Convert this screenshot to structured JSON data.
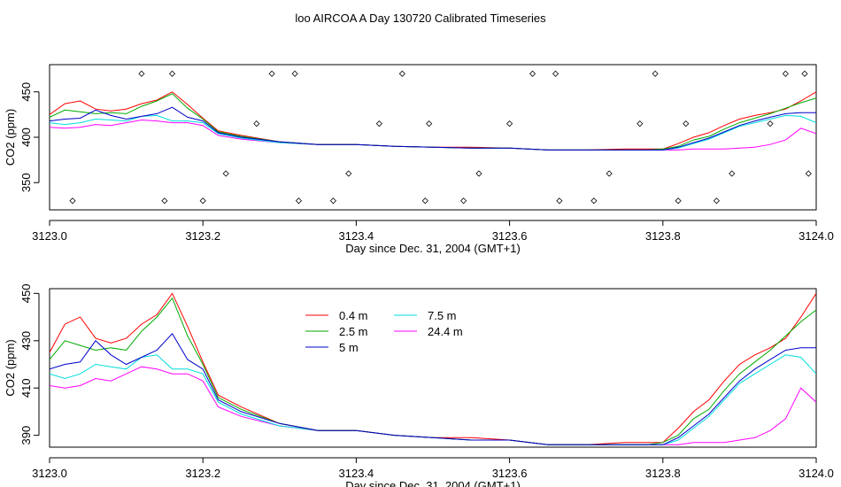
{
  "figure_title": "loo AIRCOA A  Day 130720  Calibrated Timeseries",
  "chart_data": [
    {
      "type": "line",
      "xlabel": "Day since Dec. 31, 2004 (GMT+1)",
      "ylabel": "CO2 (ppm)",
      "xlim": [
        3123.0,
        3124.0
      ],
      "ylim": [
        320,
        480
      ],
      "xticks": [
        "3123.0",
        "3123.2",
        "3123.4",
        "3123.6",
        "3123.8",
        "3124.0"
      ],
      "yticks": [
        "350",
        "400",
        "450"
      ],
      "x": [
        3123.0,
        3123.02,
        3123.04,
        3123.06,
        3123.08,
        3123.1,
        3123.12,
        3123.14,
        3123.16,
        3123.18,
        3123.2,
        3123.22,
        3123.25,
        3123.3,
        3123.35,
        3123.4,
        3123.45,
        3123.5,
        3123.55,
        3123.6,
        3123.65,
        3123.7,
        3123.75,
        3123.78,
        3123.8,
        3123.82,
        3123.84,
        3123.86,
        3123.88,
        3123.9,
        3123.92,
        3123.94,
        3123.96,
        3123.98,
        3124.0
      ],
      "series": [
        {
          "name": "0.4 m",
          "color": "#ff0000",
          "values": [
            425,
            437,
            440,
            431,
            429,
            431,
            437,
            441,
            450,
            436,
            421,
            407,
            402,
            395,
            392,
            392,
            390,
            389,
            389,
            388,
            386,
            386,
            387,
            387,
            387,
            393,
            400,
            405,
            413,
            420,
            424,
            427,
            431,
            440,
            450
          ]
        },
        {
          "name": "2.5 m",
          "color": "#00aa00",
          "values": [
            422,
            430,
            428,
            426,
            427,
            426,
            434,
            440,
            448,
            432,
            420,
            406,
            401,
            395,
            392,
            392,
            390,
            389,
            388,
            388,
            386,
            386,
            386,
            386,
            387,
            390,
            397,
            401,
            409,
            416,
            421,
            426,
            432,
            438,
            443
          ]
        },
        {
          "name": "5 m",
          "color": "#0000cc",
          "values": [
            418,
            420,
            421,
            430,
            424,
            420,
            423,
            426,
            433,
            422,
            418,
            405,
            400,
            395,
            392,
            392,
            390,
            389,
            388,
            388,
            386,
            386,
            386,
            386,
            386,
            389,
            394,
            399,
            406,
            413,
            418,
            422,
            426,
            427,
            427
          ]
        },
        {
          "name": "7.5 m",
          "color": "#00dddd",
          "values": [
            416,
            414,
            416,
            420,
            419,
            418,
            423,
            424,
            418,
            418,
            416,
            404,
            399,
            394,
            392,
            392,
            390,
            389,
            388,
            388,
            386,
            386,
            386,
            386,
            386,
            388,
            393,
            398,
            405,
            412,
            416,
            420,
            424,
            423,
            416
          ]
        },
        {
          "name": "24.4 m",
          "color": "#ff00ff",
          "values": [
            411,
            410,
            411,
            414,
            413,
            416,
            419,
            418,
            416,
            416,
            413,
            402,
            398,
            394,
            392,
            392,
            390,
            389,
            388,
            388,
            386,
            386,
            386,
            386,
            386,
            386,
            387,
            387,
            387,
            388,
            389,
            392,
            397,
            410,
            404
          ]
        }
      ],
      "marker_x": [
        3123.03,
        3123.12,
        3123.15,
        3123.16,
        3123.2,
        3123.23,
        3123.27,
        3123.29,
        3123.32,
        3123.325,
        3123.37,
        3123.39,
        3123.43,
        3123.46,
        3123.49,
        3123.495,
        3123.54,
        3123.56,
        3123.6,
        3123.63,
        3123.66,
        3123.665,
        3123.71,
        3123.73,
        3123.77,
        3123.79,
        3123.82,
        3123.83,
        3123.87,
        3123.89,
        3123.94,
        3123.96,
        3123.985,
        3123.99
      ],
      "marker_y": [
        330,
        470,
        330,
        470,
        330,
        360,
        415,
        470,
        470,
        330,
        330,
        360,
        415,
        470,
        330,
        415,
        330,
        360,
        415,
        470,
        470,
        330,
        330,
        360,
        415,
        470,
        330,
        415,
        330,
        360,
        415,
        470,
        470,
        360
      ]
    },
    {
      "type": "line",
      "xlabel": "Day since Dec. 31, 2004 (GMT+1)",
      "ylabel": "CO2 (ppm)",
      "xlim": [
        3123.0,
        3124.0
      ],
      "ylim": [
        385,
        452
      ],
      "xticks": [
        "3123.0",
        "3123.2",
        "3123.4",
        "3123.6",
        "3123.8",
        "3124.0"
      ],
      "yticks": [
        "390",
        "410",
        "430",
        "450"
      ],
      "legend": "top-center",
      "series_ref": 0
    }
  ]
}
